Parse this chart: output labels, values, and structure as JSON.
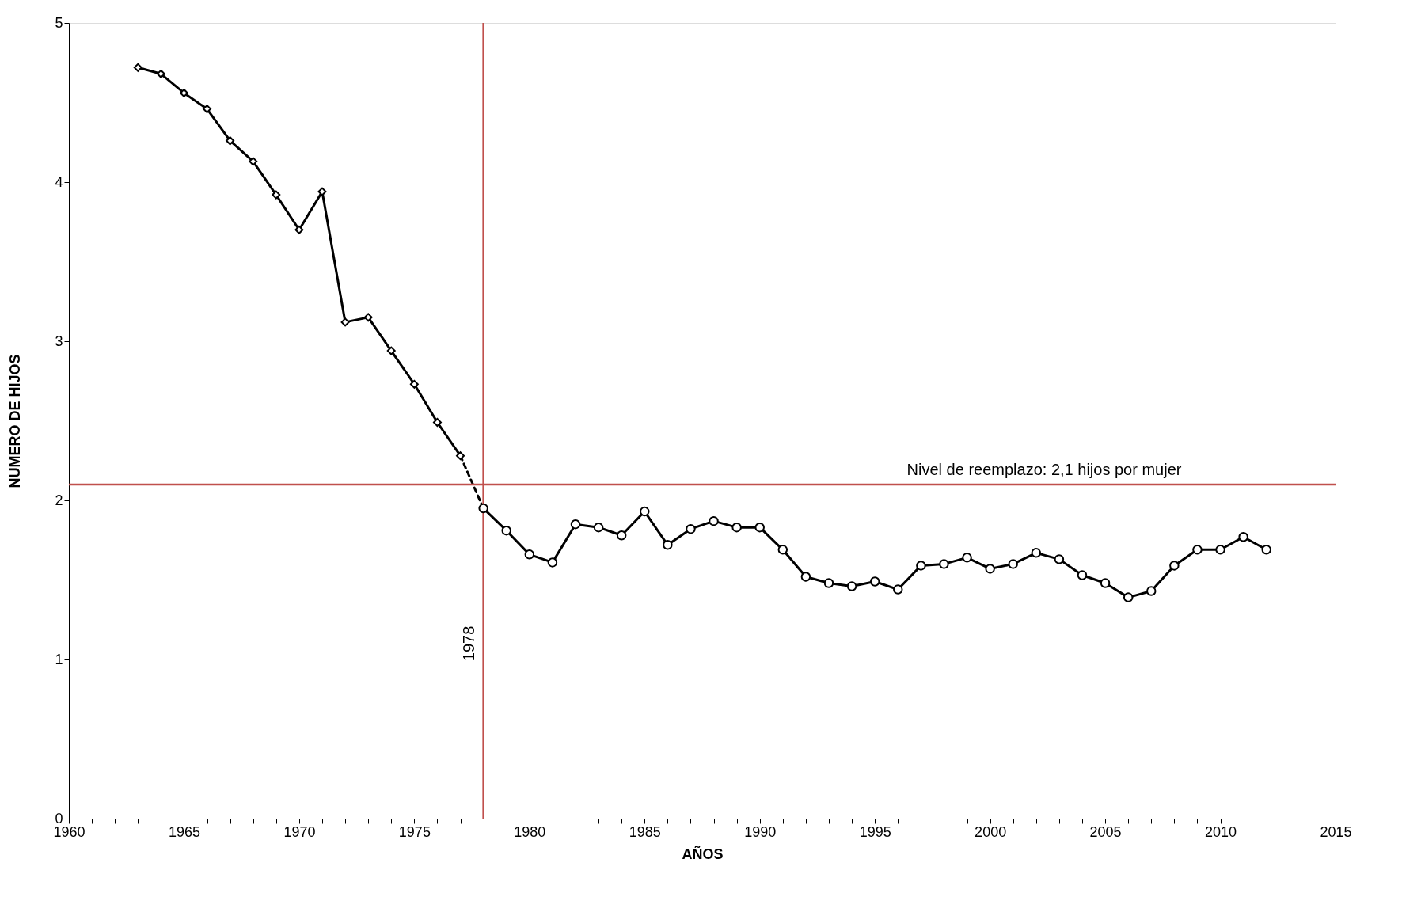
{
  "chart_data": {
    "type": "line",
    "xlabel": "AÑOS",
    "ylabel": "NUMERO DE HIJOS",
    "xlim": [
      1960,
      2015
    ],
    "ylim": [
      0,
      5
    ],
    "xticks": [
      1960,
      {
        "value": 1961,
        "label": null
      },
      {
        "value": 1962,
        "label": null
      },
      {
        "value": 1963,
        "label": null
      },
      {
        "value": 1964,
        "label": null
      },
      1965,
      {
        "value": 1966,
        "label": null
      },
      {
        "value": 1967,
        "label": null
      },
      {
        "value": 1968,
        "label": null
      },
      {
        "value": 1969,
        "label": null
      },
      1970,
      {
        "value": 1971,
        "label": null
      },
      {
        "value": 1972,
        "label": null
      },
      {
        "value": 1973,
        "label": null
      },
      {
        "value": 1974,
        "label": null
      },
      1975,
      {
        "value": 1976,
        "label": null
      },
      {
        "value": 1977,
        "label": null
      },
      {
        "value": 1978,
        "label": null
      },
      {
        "value": 1979,
        "label": null
      },
      1980,
      {
        "value": 1981,
        "label": null
      },
      {
        "value": 1982,
        "label": null
      },
      {
        "value": 1983,
        "label": null
      },
      {
        "value": 1984,
        "label": null
      },
      1985,
      {
        "value": 1986,
        "label": null
      },
      {
        "value": 1987,
        "label": null
      },
      {
        "value": 1988,
        "label": null
      },
      {
        "value": 1989,
        "label": null
      },
      1990,
      {
        "value": 1991,
        "label": null
      },
      {
        "value": 1992,
        "label": null
      },
      {
        "value": 1993,
        "label": null
      },
      {
        "value": 1994,
        "label": null
      },
      1995,
      {
        "value": 1996,
        "label": null
      },
      {
        "value": 1997,
        "label": null
      },
      {
        "value": 1998,
        "label": null
      },
      {
        "value": 1999,
        "label": null
      },
      2000,
      {
        "value": 2001,
        "label": null
      },
      {
        "value": 2002,
        "label": null
      },
      {
        "value": 2003,
        "label": null
      },
      {
        "value": 2004,
        "label": null
      },
      2005,
      {
        "value": 2006,
        "label": null
      },
      {
        "value": 2007,
        "label": null
      },
      {
        "value": 2008,
        "label": null
      },
      {
        "value": 2009,
        "label": null
      },
      2010,
      {
        "value": 2011,
        "label": null
      },
      {
        "value": 2012,
        "label": null
      },
      {
        "value": 2013,
        "label": null
      },
      {
        "value": 2014,
        "label": null
      },
      2015
    ],
    "yticks": [
      0,
      1,
      2,
      3,
      4,
      5
    ],
    "grid": false,
    "series": [
      {
        "color": "#000000",
        "marker": "diamond",
        "line_style": "solid",
        "x": [
          1963,
          1964,
          1965,
          1966,
          1967,
          1968,
          1969,
          1970,
          1971,
          1972,
          1973,
          1974,
          1975,
          1976,
          1977
        ],
        "values": [
          4.72,
          4.68,
          4.56,
          4.46,
          4.26,
          4.13,
          3.92,
          3.7,
          3.94,
          3.12,
          3.15,
          2.94,
          2.73,
          2.49,
          2.28
        ]
      },
      {
        "color": "#000000",
        "line_style": "dashed",
        "x": [
          1977,
          1978
        ],
        "values": [
          2.28,
          1.95
        ]
      },
      {
        "color": "#000000",
        "marker": "circle",
        "line_style": "solid",
        "x": [
          1978,
          1979,
          1980,
          1981,
          1982,
          1983,
          1984,
          1985,
          1986,
          1987,
          1988,
          1989,
          1990,
          1991,
          1992,
          1993,
          1994,
          1995,
          1996,
          1997,
          1998,
          1999,
          2000,
          2001,
          2002,
          2003,
          2004,
          2005,
          2006,
          2007,
          2008,
          2009,
          2010,
          2011,
          2012
        ],
        "values": [
          1.95,
          1.81,
          1.66,
          1.61,
          1.85,
          1.83,
          1.78,
          1.93,
          1.72,
          1.82,
          1.87,
          1.83,
          1.83,
          1.69,
          1.52,
          1.48,
          1.46,
          1.49,
          1.44,
          1.59,
          1.6,
          1.64,
          1.57,
          1.6,
          1.67,
          1.63,
          1.53,
          1.48,
          1.39,
          1.43,
          1.59,
          1.69,
          1.69,
          1.77,
          1.69
        ]
      }
    ],
    "ref_lines": [
      {
        "axis": "y",
        "value": 2.1,
        "label": "Nivel de reemplazo: 2,1 hijos por mujer",
        "color": "#c0504d"
      },
      {
        "axis": "x",
        "value": 1978,
        "label": "1978",
        "color": "#c0504d"
      }
    ]
  }
}
